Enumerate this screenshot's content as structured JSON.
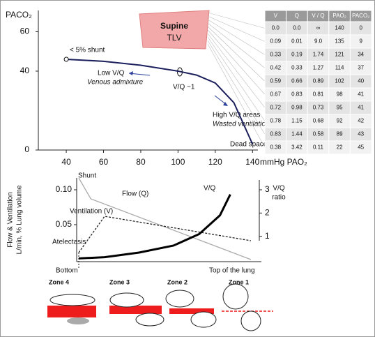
{
  "top_chart": {
    "y_label": "PACO₂",
    "x_unit_label": "mmHg PAO₂",
    "xlim": [
      25,
      150
    ],
    "ylim": [
      0,
      69
    ],
    "xticks": [
      40,
      60,
      80,
      100,
      120,
      140
    ],
    "yticks": [
      0,
      40,
      60
    ],
    "curve": {
      "x": [
        40,
        60,
        80,
        100,
        110,
        120,
        130,
        140
      ],
      "y": [
        46,
        45,
        43,
        40,
        38,
        34,
        24,
        3
      ]
    },
    "annotations": {
      "shunt": "< 5% shunt",
      "low_vq": "Low V/Q",
      "venous": "Venous admixture",
      "vq1": "V/Q ~1",
      "high_vq": "High V/Q areas",
      "wasted": "Wasted ventilation",
      "dead": "Dead space",
      "supine": "Supine",
      "tlv": "TLV"
    }
  },
  "table": {
    "header": [
      "V",
      "Q",
      "V / Q",
      "PAO₂",
      "PACO₂"
    ],
    "rows": [
      [
        "0.0",
        "0.0",
        "∞",
        "140",
        "0"
      ],
      [
        "0.09",
        "0.01",
        "9.0",
        "135",
        "9"
      ],
      [
        "0.33",
        "0.19",
        "1.74",
        "121",
        "34"
      ],
      [
        "0.42",
        "0.33",
        "1.27",
        "114",
        "37"
      ],
      [
        "0.59",
        "0.66",
        "0.89",
        "102",
        "40"
      ],
      [
        "0.67",
        "0.83",
        "0.81",
        "98",
        "41"
      ],
      [
        "0.72",
        "0.98",
        "0.73",
        "95",
        "41"
      ],
      [
        "0.78",
        "1.15",
        "0.68",
        "92",
        "42"
      ],
      [
        "0.83",
        "1.44",
        "0.58",
        "89",
        "43"
      ],
      [
        "0.38",
        "3.42",
        "0.11",
        "22",
        "45"
      ]
    ]
  },
  "bottom_chart": {
    "y_label_lines": [
      "Flow & Ventilation",
      "L/min, % Lung volume"
    ],
    "y2_label_lines": [
      "V/Q",
      "ratio"
    ],
    "ylim": [
      0,
      0.11
    ],
    "yticks": [
      0.05,
      {
        "value": 0.1,
        "label": "0.10"
      }
    ],
    "y2lim": [
      0,
      3.3
    ],
    "y2ticks": [
      1,
      2,
      3
    ],
    "x_labels": [
      "Bottom",
      "Top of the lung"
    ],
    "annotations": {
      "shunt": "Shunt",
      "atelectasis": "Atelectasis"
    },
    "series": [
      {
        "name": "Flow (Q)",
        "color": "#aaaaaa",
        "x": [
          0,
          0.07,
          1
        ],
        "values": [
          0.117,
          0.087,
          0.0
        ]
      },
      {
        "name": "Ventilation (V)",
        "color": "#222222",
        "dash": true,
        "x": [
          0,
          0.15,
          1
        ],
        "values": [
          0.01,
          0.062,
          0.027
        ]
      },
      {
        "name": "V/Q",
        "color": "#000000",
        "axis": "y2",
        "x": [
          0,
          0.15,
          0.35,
          0.55,
          0.7,
          0.82,
          0.88
        ],
        "values": [
          0.05,
          0.1,
          0.3,
          0.6,
          1.1,
          1.9,
          2.8
        ]
      }
    ]
  },
  "zones": [
    "Zone 4",
    "Zone 3",
    "Zone 2",
    "Zone 1"
  ]
}
